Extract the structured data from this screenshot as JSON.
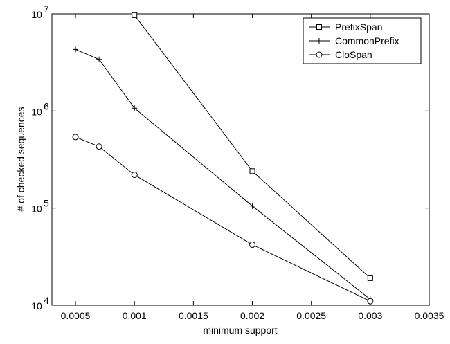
{
  "chart_data": {
    "type": "line",
    "title": "",
    "xlabel": "minimum support",
    "ylabel": "# of checked sequences",
    "xlim": [
      0.0003,
      0.0035
    ],
    "ylim": [
      10000,
      10000000
    ],
    "y_scale": "log",
    "grid": false,
    "legend_position": "top-right",
    "x_ticks": [
      "0.0005",
      "0.001",
      "0.0015",
      "0.002",
      "0.0025",
      "0.003",
      "0.0035"
    ],
    "y_ticks": [
      {
        "base": "10",
        "exp": "4"
      },
      {
        "base": "10",
        "exp": "5"
      },
      {
        "base": "10",
        "exp": "6"
      },
      {
        "base": "10",
        "exp": "7"
      }
    ],
    "series": [
      {
        "name": "PrefixSpan",
        "marker": "square",
        "x": [
          0.001,
          0.002,
          0.003
        ],
        "y": [
          9700000,
          240000,
          19000
        ]
      },
      {
        "name": "CommonPrefix",
        "marker": "plus",
        "x": [
          0.0005,
          0.0007,
          0.001,
          0.002,
          0.003
        ],
        "y": [
          4300000,
          3400000,
          1070000,
          105000,
          11500
        ]
      },
      {
        "name": "CloSpan",
        "marker": "circle",
        "x": [
          0.0005,
          0.0007,
          0.001,
          0.002,
          0.003
        ],
        "y": [
          540000,
          430000,
          220000,
          42000,
          11000
        ]
      }
    ]
  }
}
